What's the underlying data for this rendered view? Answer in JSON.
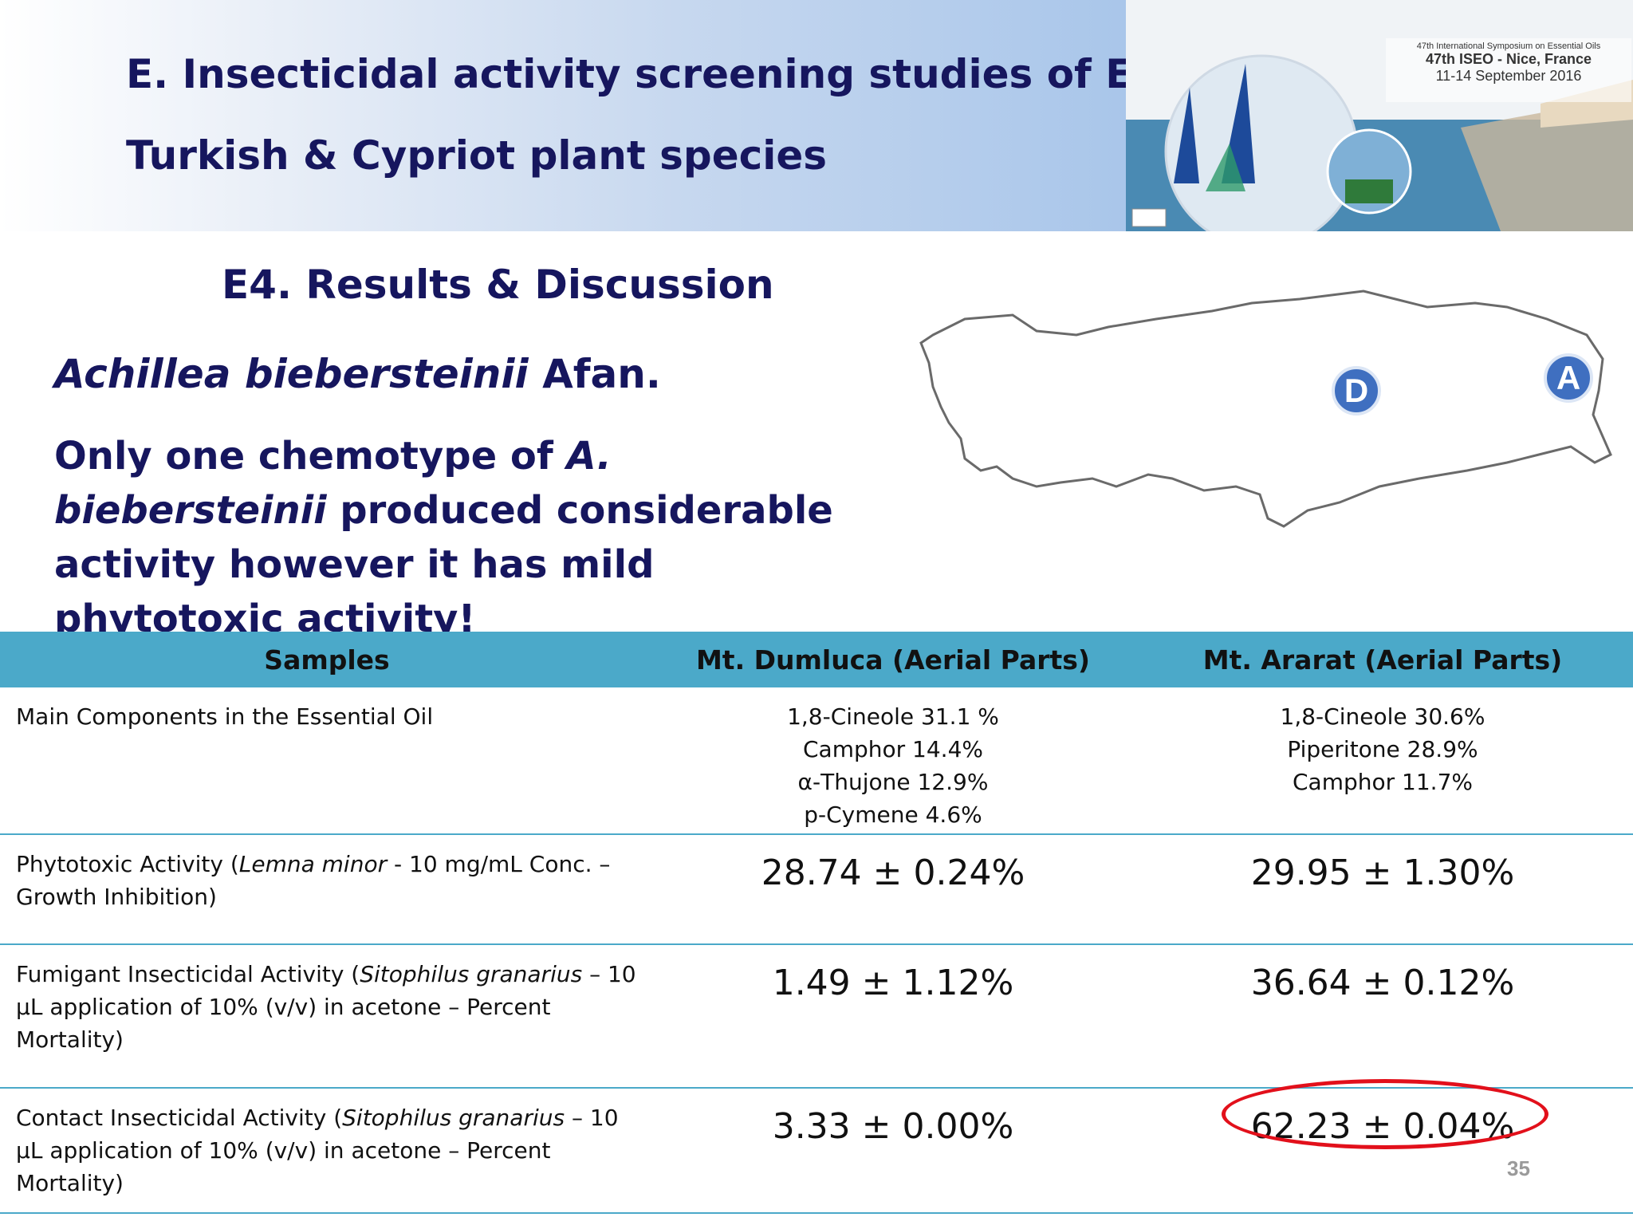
{
  "header": {
    "title_line1": "E. Insecticidal activity screening studies of EO from",
    "title_line2": "Turkish & Cypriot plant species"
  },
  "banner": {
    "line1": "47th International Symposium on Essential Oils",
    "line2": "47th ISEO - Nice, France",
    "line3": "11-14 September 2016"
  },
  "subheading": "E4. Results & Discussion",
  "species": {
    "genus_species": "Achillea biebersteinii",
    "author": " Afan."
  },
  "statement": {
    "part1": "Only one chemotype of ",
    "italic": "A. biebersteinii",
    "part2": " produced considerable activity however it has mild phytotoxic activity!"
  },
  "map": {
    "marker_d": "D",
    "marker_a": "A"
  },
  "table": {
    "headers": [
      "Samples",
      "Mt. Dumluca (Aerial Parts)",
      "Mt. Ararat (Aerial Parts)"
    ],
    "rows": [
      {
        "label": "Main Components in the Essential Oil",
        "dumluca": [
          "1,8-Cineole 31.1 %",
          "Camphor 14.4%",
          "α-Thujone 12.9%",
          "p-Cymene 4.6%"
        ],
        "ararat": [
          "1,8-Cineole 30.6%",
          "Piperitone 28.9%",
          "Camphor 11.7%"
        ]
      },
      {
        "label_pre": "Phytotoxic Activity (",
        "label_italic": "Lemna minor",
        "label_post": " - 10 mg/mL Conc. – Growth Inhibition)",
        "dumluca": "28.74 ± 0.24%",
        "ararat": "29.95 ± 1.30%"
      },
      {
        "label_pre": "Fumigant Insecticidal Activity (",
        "label_italic": "Sitophilus granarius",
        "label_post": " – 10 µL application of 10% (v/v) in acetone – Percent Mortality)",
        "dumluca": "1.49 ± 1.12%",
        "ararat": "36.64 ± 0.12%"
      },
      {
        "label_pre": "Contact Insecticidal Activity (",
        "label_italic": "Sitophilus granarius",
        "label_post": " – 10 µL application of 10% (v/v) in acetone – Percent Mortality)",
        "dumluca": "3.33 ± 0.00%",
        "ararat": "62.23 ± 0.04%"
      }
    ]
  },
  "page_number": "35",
  "colors": {
    "title": "#16165e",
    "table_header": "#4ba9c9",
    "highlight": "#e2101b",
    "marker": "#3f6fc0"
  }
}
